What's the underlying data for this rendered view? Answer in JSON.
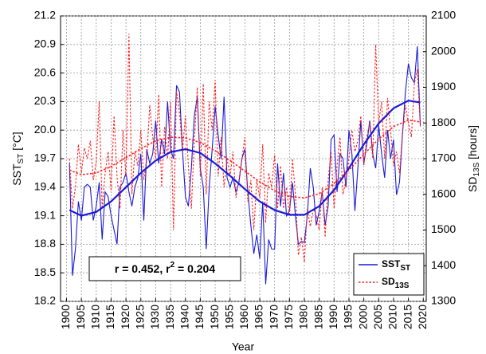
{
  "chart_data": {
    "type": "line",
    "x_label": "Year",
    "y_label": [
      "SST",
      "ST",
      " [°C]"
    ],
    "y2_label": [
      "SD",
      "13S",
      " [hours]"
    ],
    "annotation": [
      "r = 0.452, r",
      "2",
      " = 0.204"
    ],
    "xlim": [
      1898,
      2021
    ],
    "xticks": [
      1900,
      1905,
      1910,
      1915,
      1920,
      1925,
      1930,
      1935,
      1940,
      1945,
      1950,
      1955,
      1960,
      1965,
      1970,
      1975,
      1980,
      1985,
      1990,
      1995,
      2000,
      2005,
      2010,
      2015,
      2020
    ],
    "ylim": [
      18.2,
      21.2
    ],
    "yticks": [
      18.2,
      18.5,
      18.8,
      19.1,
      19.4,
      19.7,
      {
        "value": 20.0,
        "label": "20.0"
      },
      20.3,
      20.6,
      20.9,
      21.2
    ],
    "y2lim": [
      1300,
      2100
    ],
    "y2ticks": [
      1300,
      1400,
      1500,
      1600,
      1700,
      1800,
      1900,
      2000,
      2100
    ],
    "grid": true,
    "legend": "lower right",
    "x": [
      1901,
      1902,
      1903,
      1904,
      1905,
      1906,
      1907,
      1908,
      1909,
      1910,
      1911,
      1912,
      1913,
      1914,
      1915,
      1916,
      1917,
      1918,
      1919,
      1920,
      1921,
      1922,
      1923,
      1924,
      1925,
      1926,
      1927,
      1928,
      1929,
      1930,
      1931,
      1932,
      1933,
      1934,
      1935,
      1936,
      1937,
      1938,
      1939,
      1940,
      1941,
      1942,
      1943,
      1944,
      1945,
      1946,
      1947,
      1948,
      1949,
      1950,
      1951,
      1952,
      1953,
      1954,
      1955,
      1956,
      1957,
      1958,
      1959,
      1960,
      1961,
      1962,
      1963,
      1964,
      1965,
      1966,
      1967,
      1968,
      1969,
      1970,
      1971,
      1972,
      1973,
      1974,
      1975,
      1976,
      1977,
      1978,
      1979,
      1980,
      1981,
      1982,
      1983,
      1984,
      1985,
      1986,
      1987,
      1988,
      1989,
      1990,
      1991,
      1992,
      1993,
      1994,
      1995,
      1996,
      1997,
      1998,
      1999,
      2000,
      2001,
      2002,
      2003,
      2004,
      2005,
      2006,
      2007,
      2008,
      2009,
      2010,
      2011,
      2012,
      2013,
      2014,
      2015,
      2016,
      2017,
      2018,
      2019
    ],
    "series": [
      {
        "name": "SST",
        "name_sub": "ST",
        "color": "#1a1ad6",
        "dash": "solid",
        "values": [
          19.65,
          18.47,
          18.75,
          19.25,
          19.05,
          19.4,
          19.43,
          19.4,
          19.05,
          19.2,
          19.45,
          18.85,
          19.35,
          19.3,
          19.1,
          18.95,
          18.8,
          19.4,
          19.45,
          19.55,
          19.35,
          19.2,
          19.4,
          19.5,
          19.75,
          19.05,
          19.8,
          19.65,
          19.75,
          20.1,
          19.65,
          19.9,
          19.75,
          20.3,
          19.8,
          19.7,
          20.47,
          20.4,
          19.8,
          19.3,
          19.2,
          19.6,
          20.15,
          20.35,
          19.6,
          19.4,
          18.75,
          19.4,
          19.8,
          20.25,
          19.95,
          19.7,
          20.35,
          19.5,
          19.4,
          19.5,
          19.35,
          19.45,
          19.7,
          19.8,
          19.35,
          19.0,
          18.7,
          18.9,
          18.65,
          19.25,
          18.38,
          18.85,
          18.75,
          18.75,
          19.65,
          19.2,
          19.55,
          19.1,
          19.15,
          19.45,
          19.1,
          18.8,
          18.83,
          18.82,
          19.1,
          19.6,
          19.4,
          19.0,
          19.15,
          19.35,
          19.0,
          19.2,
          19.9,
          19.95,
          19.35,
          19.75,
          19.7,
          19.4,
          20.0,
          19.75,
          19.15,
          19.6,
          20.1,
          19.65,
          19.85,
          20.1,
          19.75,
          19.6,
          20.05,
          19.75,
          19.5,
          20.0,
          19.7,
          19.9,
          19.32,
          19.45,
          19.95,
          20.4,
          20.7,
          20.55,
          20.5,
          20.88,
          20.05
        ]
      },
      {
        "name": "SD",
        "name_sub": "13S",
        "color": "#ff2020",
        "dash": "dotted",
        "axis": "y2",
        "values": [
          1700,
          1560,
          1620,
          1740,
          1660,
          1730,
          1700,
          1750,
          1640,
          1690,
          1860,
          1560,
          1660,
          1720,
          1610,
          1820,
          1650,
          1560,
          1780,
          1650,
          2050,
          1600,
          1720,
          1680,
          1780,
          1640,
          1700,
          1850,
          1760,
          1700,
          1880,
          1620,
          1790,
          1700,
          1860,
          1500,
          1890,
          1830,
          1720,
          1820,
          1680,
          1560,
          1750,
          1900,
          1650,
          1910,
          1600,
          1860,
          1780,
          1920,
          1650,
          1760,
          1620,
          1700,
          1650,
          1720,
          1590,
          1640,
          1700,
          1760,
          1580,
          1640,
          1500,
          1640,
          1590,
          1740,
          1520,
          1660,
          1620,
          1710,
          1560,
          1680,
          1560,
          1620,
          1540,
          1700,
          1600,
          1430,
          1480,
          1410,
          1560,
          1510,
          1560,
          1540,
          1500,
          1620,
          1480,
          1640,
          1720,
          1560,
          1680,
          1760,
          1600,
          1640,
          1700,
          1780,
          1720,
          1750,
          1820,
          1680,
          1760,
          1800,
          1700,
          2020,
          1800,
          1860,
          1700,
          1870,
          1780,
          1680,
          1720,
          1660,
          1770,
          1850,
          1800,
          1760,
          1910,
          1950,
          1790
        ]
      },
      {
        "color": "#1a1ad6",
        "dash": "solid",
        "width": 2.2,
        "x": [
          1901,
          1905,
          1910,
          1915,
          1920,
          1925,
          1930,
          1935,
          1940,
          1945,
          1950,
          1955,
          1960,
          1965,
          1970,
          1975,
          1980,
          1985,
          1990,
          1995,
          2000,
          2005,
          2010,
          2015,
          2019
        ],
        "values": [
          19.16,
          19.1,
          19.14,
          19.25,
          19.4,
          19.55,
          19.68,
          19.77,
          19.8,
          19.76,
          19.65,
          19.52,
          19.38,
          19.25,
          19.16,
          19.11,
          19.11,
          19.2,
          19.37,
          19.6,
          19.85,
          20.07,
          20.23,
          20.31,
          20.29
        ]
      },
      {
        "color": "#ff2020",
        "dash": "dotted",
        "width": 1.6,
        "axis": "y2",
        "x": [
          1901,
          1905,
          1910,
          1915,
          1920,
          1925,
          1930,
          1935,
          1940,
          1945,
          1950,
          1955,
          1960,
          1965,
          1970,
          1975,
          1980,
          1985,
          1990,
          1995,
          2000,
          2005,
          2010,
          2015,
          2019
        ],
        "values": [
          1668,
          1655,
          1660,
          1678,
          1703,
          1728,
          1750,
          1760,
          1758,
          1745,
          1722,
          1695,
          1665,
          1635,
          1610,
          1594,
          1590,
          1602,
          1630,
          1668,
          1712,
          1755,
          1790,
          1808,
          1803
        ]
      }
    ]
  }
}
